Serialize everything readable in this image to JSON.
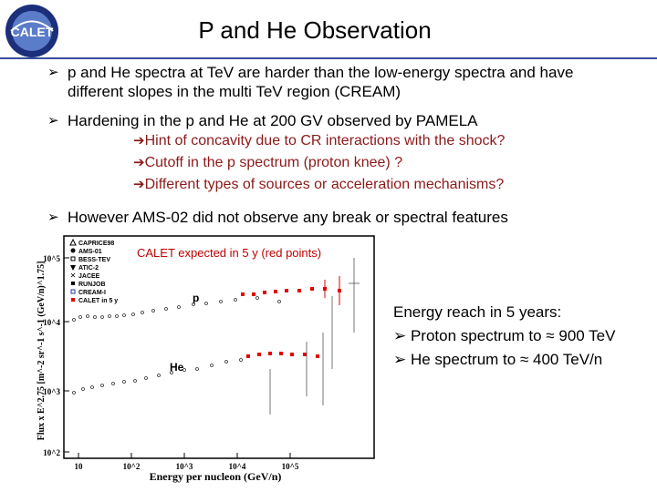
{
  "logo": {
    "text": "CALET"
  },
  "title": "P and He Observation",
  "bullets": [
    {
      "line1": "p and He spectra at TeV are harder than the low-energy spectra and have",
      "line2": "different slopes in the multi TeV region  (CREAM)"
    },
    {
      "line1": "Hardening in the p and He at 200 GV observed by PAMELA"
    },
    {
      "line1": "However AMS-02 did not observe any break or spectral features"
    }
  ],
  "subpoints": [
    "Hint of concavity due to CR interactions with the shock?",
    "Cutoff in the p spectrum (proton knee) ?",
    "Different types of sources or acceleration mechanisms?"
  ],
  "plot": {
    "annotation": "CALET expected in 5 y (red points)",
    "ylabel": "Flux x E^2.75 [m^-2 sr^-1 s^-1 (GeV/n)^1.75]",
    "xlabel": "Energy per nucleon (GeV/n)",
    "y_ticks": [
      "10^2",
      "10^3",
      "10^4",
      "10^5"
    ],
    "x_ticks": [
      "10",
      "10^2",
      "10^3",
      "10^4",
      "10^5"
    ],
    "legend": [
      "CAPRICE98",
      "AMS-01",
      "BESS-TEV",
      "ATIC-2",
      "JACEE",
      "RUNJOB",
      "CREAM-I",
      "CALET in 5 y"
    ],
    "series_labels": [
      "p",
      "He"
    ]
  },
  "energy_reach": {
    "heading": "Energy reach in 5 years:",
    "items": [
      "Proton spectrum to  ≈ 900 TeV",
      "He spectrum to ≈ 400 TeV/n"
    ]
  },
  "colors": {
    "accent": "#3a4d9c",
    "subpoint": "#8b1a1a",
    "calet": "#e00000"
  }
}
